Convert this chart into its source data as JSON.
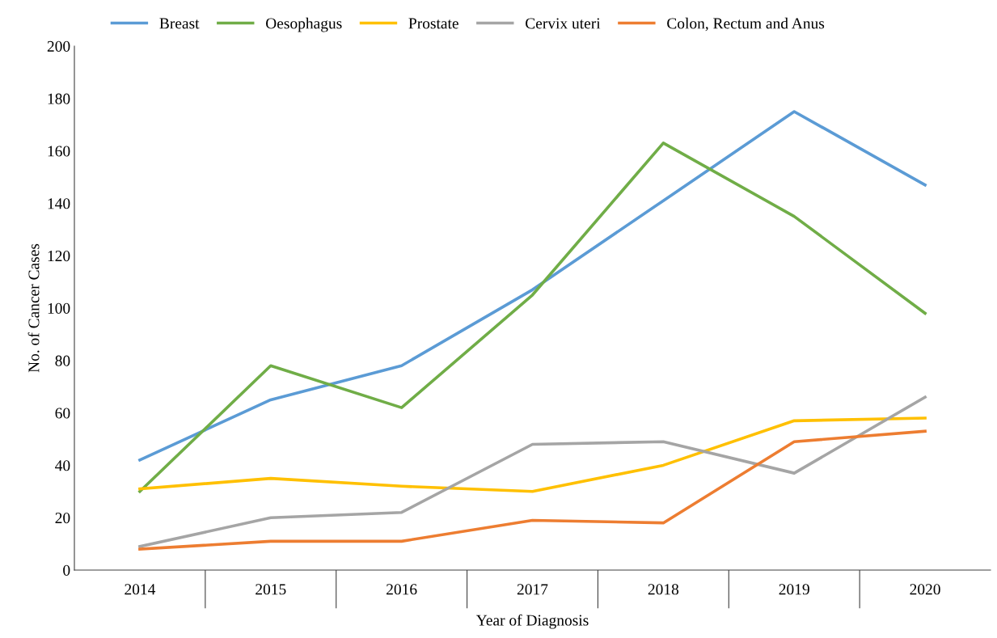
{
  "chart_data": {
    "type": "line",
    "xlabel": "Year of Diagnosis",
    "ylabel": "No. of Cancer Cases",
    "categories": [
      "2014",
      "2015",
      "2016",
      "2017",
      "2018",
      "2019",
      "2020"
    ],
    "series": [
      {
        "name": "Breast",
        "color": "#5b9bd5",
        "values": [
          42,
          65,
          78,
          107,
          141,
          175,
          147
        ]
      },
      {
        "name": "Oesophagus",
        "color": "#70ad47",
        "values": [
          30,
          78,
          62,
          105,
          163,
          135,
          98
        ]
      },
      {
        "name": "Prostate",
        "color": "#ffc000",
        "values": [
          31,
          35,
          32,
          30,
          40,
          57,
          58
        ]
      },
      {
        "name": "Cervix uteri",
        "color": "#a5a5a5",
        "values": [
          9,
          20,
          22,
          48,
          49,
          37,
          66
        ]
      },
      {
        "name": "Colon, Rectum and Anus",
        "color": "#ed7d31",
        "values": [
          8,
          11,
          11,
          19,
          18,
          49,
          53
        ]
      }
    ],
    "ylim": [
      0,
      200
    ],
    "yticks": [
      0,
      20,
      40,
      60,
      80,
      100,
      120,
      140,
      160,
      180,
      200
    ],
    "grid": false,
    "legend": "top",
    "marker": "none",
    "line_style": "solid"
  }
}
